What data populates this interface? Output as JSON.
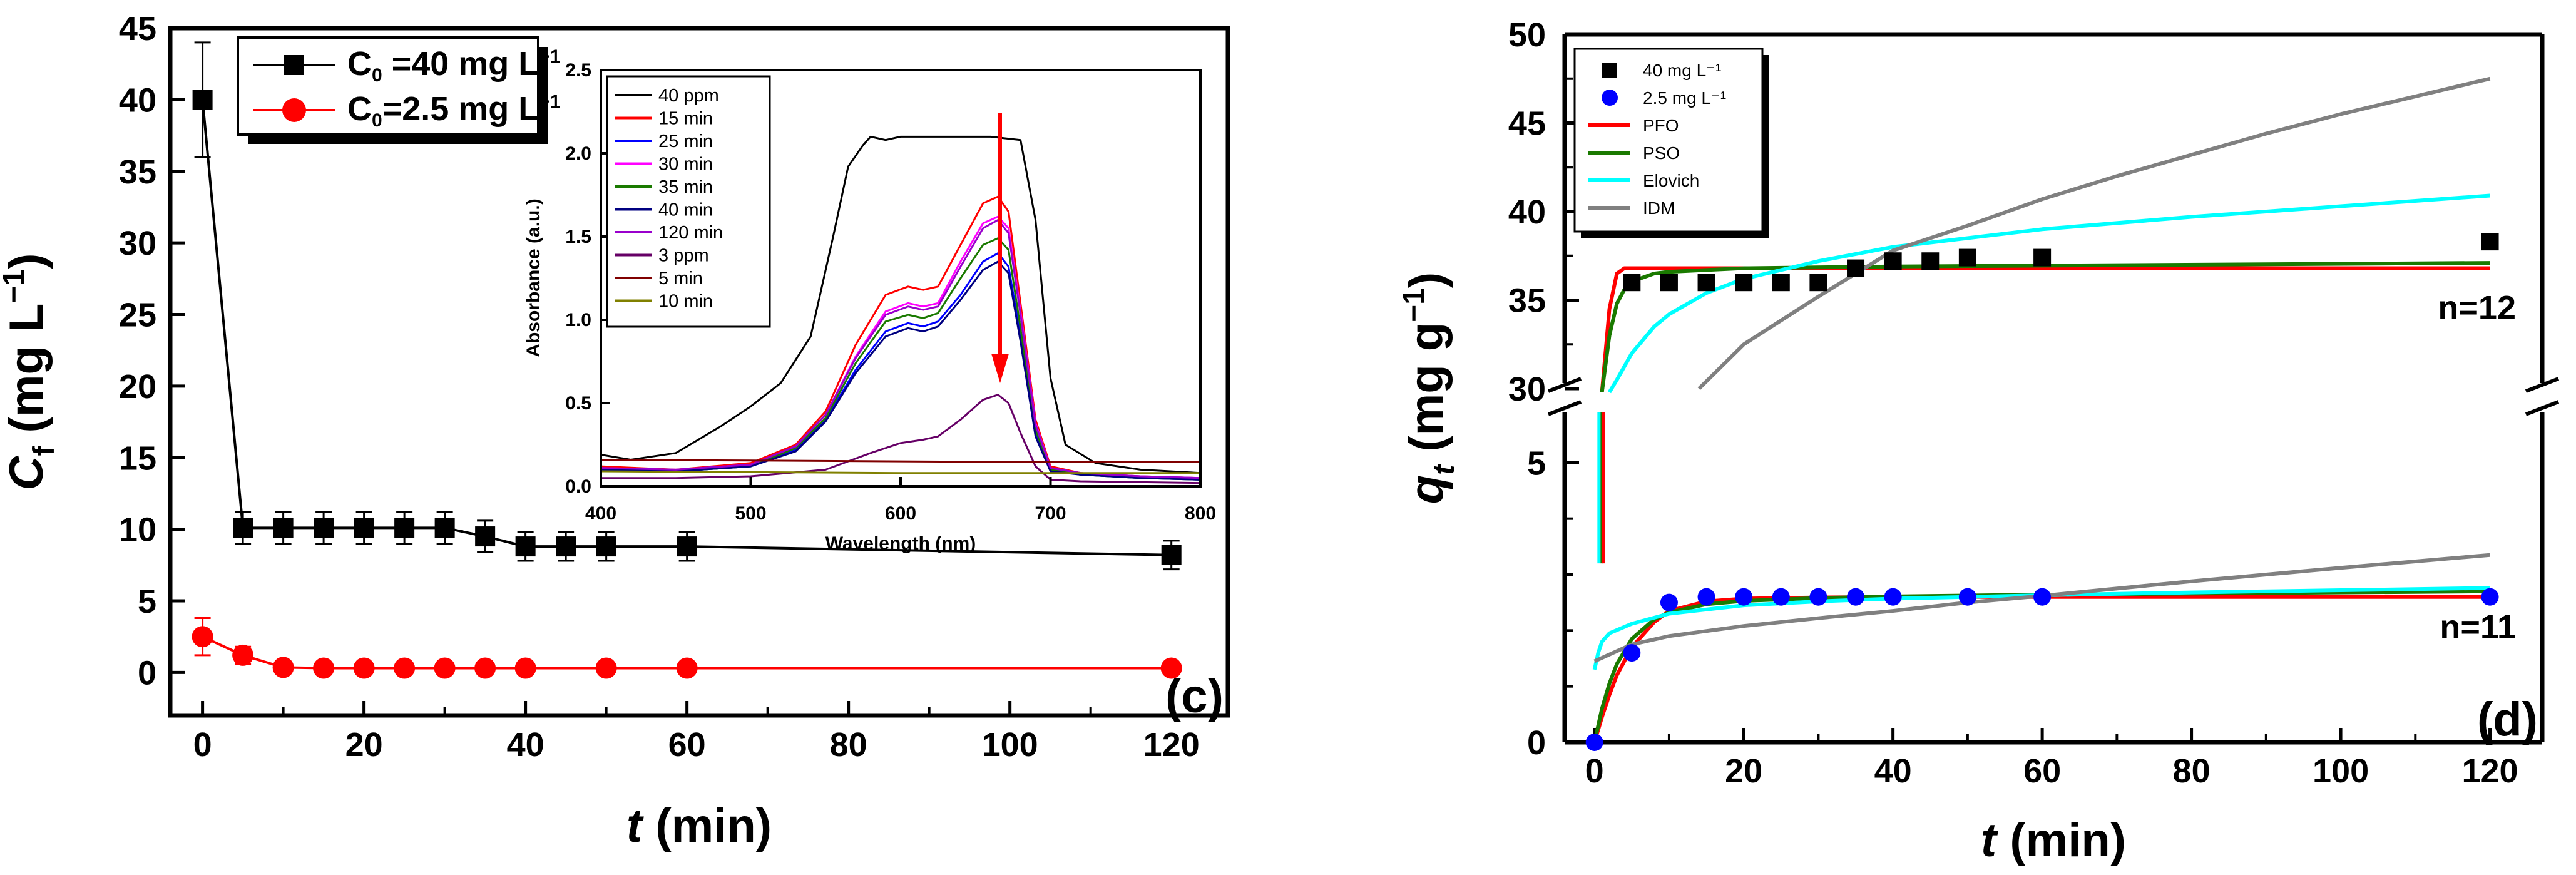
{
  "colors": {
    "black": "#000000",
    "red": "#ff0000",
    "blue": "#0000ff",
    "green": "#1a7a00",
    "cyan": "#00ffff",
    "gray": "#808080"
  },
  "chart_data": [
    {
      "id": "c",
      "type": "line",
      "panel_label": "(c)",
      "xlabel": "t (min)",
      "xlabel_var": "t",
      "xlabel_unit": "(min)",
      "ylabel": "Cf (mg L⁻¹)",
      "xlim": [
        -4,
        127
      ],
      "ylim": [
        -3,
        45
      ],
      "xticks": [
        0,
        20,
        40,
        60,
        80,
        100,
        120
      ],
      "yticks": [
        0,
        5,
        10,
        15,
        20,
        25,
        30,
        35,
        40,
        45
      ],
      "legend": [
        "C₀=40 mg L⁻¹",
        "C₀=2.5 mg L⁻¹"
      ],
      "series": [
        {
          "name": "C₀=40 mg L⁻¹",
          "color": "#000000",
          "marker": "square",
          "x": [
            0,
            5,
            10,
            15,
            20,
            25,
            30,
            35,
            40,
            45,
            50,
            60,
            120
          ],
          "y": [
            40,
            10.1,
            10.1,
            10.1,
            10.1,
            10.1,
            10.1,
            9.5,
            8.8,
            8.8,
            8.8,
            8.8,
            8.2
          ],
          "err": [
            4,
            1.1,
            1.1,
            1.1,
            1.1,
            1.1,
            1.1,
            1.1,
            1.0,
            1.0,
            1.0,
            1.0,
            1.0
          ]
        },
        {
          "name": "C₀=2.5 mg L⁻¹",
          "color": "#ff0000",
          "marker": "circle",
          "x": [
            0,
            5,
            10,
            15,
            20,
            25,
            30,
            35,
            40,
            50,
            60,
            120
          ],
          "y": [
            2.5,
            1.2,
            0.35,
            0.3,
            0.3,
            0.3,
            0.3,
            0.3,
            0.3,
            0.3,
            0.3,
            0.3
          ],
          "err": [
            1.3,
            0.6,
            0.2,
            0.15,
            0.15,
            0.15,
            0.15,
            0.15,
            0.15,
            0.15,
            0.15,
            0.15
          ]
        }
      ]
    },
    {
      "id": "inset",
      "type": "line",
      "xlabel": "Wavelength (nm)",
      "ylabel": "Absorbance (a.u.)",
      "xlim": [
        400,
        800
      ],
      "ylim": [
        0,
        2.5
      ],
      "xticks": [
        400,
        500,
        600,
        700,
        800
      ],
      "yticks": [
        0.0,
        0.5,
        1.0,
        1.5,
        2.0,
        2.5
      ],
      "ytick_labels": [
        "0.0",
        "0.5",
        "1.0",
        "1.5",
        "2.0",
        "2.5"
      ],
      "series": [
        {
          "name": "40 ppm",
          "color": "#000000",
          "x": [
            400,
            420,
            450,
            480,
            500,
            520,
            540,
            555,
            565,
            575,
            580,
            590,
            600,
            620,
            640,
            660,
            680,
            690,
            700,
            710,
            730,
            760,
            800
          ],
          "y": [
            0.19,
            0.16,
            0.2,
            0.36,
            0.48,
            0.62,
            0.9,
            1.5,
            1.92,
            2.05,
            2.1,
            2.08,
            2.1,
            2.1,
            2.1,
            2.1,
            2.08,
            1.6,
            0.65,
            0.25,
            0.14,
            0.1,
            0.08
          ]
        },
        {
          "name": "15 min",
          "color": "#ff0000",
          "x": [
            400,
            450,
            500,
            530,
            550,
            570,
            590,
            605,
            615,
            625,
            640,
            655,
            665,
            672,
            680,
            690,
            700,
            720,
            760,
            800
          ],
          "y": [
            0.12,
            0.1,
            0.14,
            0.25,
            0.45,
            0.85,
            1.15,
            1.2,
            1.18,
            1.2,
            1.45,
            1.7,
            1.74,
            1.65,
            1.1,
            0.4,
            0.12,
            0.08,
            0.06,
            0.05
          ]
        },
        {
          "name": "25 min",
          "color": "#0000ff",
          "x": [
            400,
            450,
            500,
            530,
            550,
            570,
            590,
            605,
            615,
            625,
            640,
            655,
            665,
            672,
            680,
            690,
            700,
            720,
            760,
            800
          ],
          "y": [
            0.1,
            0.09,
            0.12,
            0.22,
            0.4,
            0.7,
            0.93,
            0.98,
            0.96,
            0.99,
            1.15,
            1.35,
            1.4,
            1.32,
            0.9,
            0.32,
            0.1,
            0.07,
            0.05,
            0.04
          ]
        },
        {
          "name": "30 min",
          "color": "#ff00ff",
          "x": [
            400,
            450,
            500,
            530,
            550,
            570,
            590,
            605,
            615,
            625,
            640,
            655,
            665,
            672,
            680,
            690,
            700,
            720,
            760,
            800
          ],
          "y": [
            0.11,
            0.1,
            0.13,
            0.24,
            0.43,
            0.78,
            1.05,
            1.1,
            1.08,
            1.1,
            1.35,
            1.58,
            1.62,
            1.55,
            1.05,
            0.38,
            0.11,
            0.08,
            0.06,
            0.05
          ]
        },
        {
          "name": "35 min",
          "color": "#1a7a00",
          "x": [
            400,
            450,
            500,
            530,
            550,
            570,
            590,
            605,
            615,
            625,
            640,
            655,
            665,
            672,
            680,
            690,
            700,
            720,
            760,
            800
          ],
          "y": [
            0.1,
            0.09,
            0.12,
            0.23,
            0.41,
            0.74,
            0.99,
            1.03,
            1.01,
            1.04,
            1.25,
            1.45,
            1.49,
            1.42,
            0.95,
            0.34,
            0.1,
            0.07,
            0.05,
            0.04
          ]
        },
        {
          "name": "40 min",
          "color": "#000080",
          "x": [
            400,
            450,
            500,
            530,
            550,
            570,
            590,
            605,
            615,
            625,
            640,
            655,
            665,
            672,
            680,
            690,
            700,
            720,
            760,
            800
          ],
          "y": [
            0.1,
            0.09,
            0.12,
            0.21,
            0.39,
            0.68,
            0.9,
            0.95,
            0.93,
            0.96,
            1.12,
            1.3,
            1.35,
            1.28,
            0.87,
            0.3,
            0.09,
            0.07,
            0.05,
            0.04
          ]
        },
        {
          "name": "120 min",
          "color": "#9900cc",
          "x": [
            400,
            450,
            500,
            530,
            550,
            570,
            590,
            605,
            615,
            625,
            640,
            655,
            665,
            672,
            680,
            690,
            700,
            720,
            760,
            800
          ],
          "y": [
            0.11,
            0.1,
            0.13,
            0.24,
            0.43,
            0.77,
            1.03,
            1.08,
            1.06,
            1.08,
            1.32,
            1.55,
            1.6,
            1.52,
            1.03,
            0.37,
            0.11,
            0.08,
            0.06,
            0.05
          ]
        },
        {
          "name": "3 ppm",
          "color": "#660066",
          "x": [
            400,
            450,
            500,
            550,
            580,
            600,
            615,
            625,
            640,
            655,
            665,
            672,
            680,
            690,
            700,
            720,
            800
          ],
          "y": [
            0.05,
            0.05,
            0.06,
            0.1,
            0.2,
            0.26,
            0.28,
            0.3,
            0.4,
            0.52,
            0.55,
            0.5,
            0.32,
            0.12,
            0.04,
            0.03,
            0.02
          ]
        },
        {
          "name": "5 min",
          "color": "#800000",
          "x": [
            400,
            500,
            600,
            700,
            800
          ],
          "y": [
            0.16,
            0.155,
            0.15,
            0.145,
            0.145
          ]
        },
        {
          "name": "10 min",
          "color": "#808000",
          "x": [
            400,
            500,
            600,
            700,
            800
          ],
          "y": [
            0.09,
            0.085,
            0.08,
            0.08,
            0.08
          ]
        }
      ]
    },
    {
      "id": "d",
      "type": "scatter",
      "panel_label": "(d)",
      "xlabel": "t (min)",
      "xlabel_var": "t",
      "xlabel_unit": "(min)",
      "ylabel": "qt (mg g⁻¹)",
      "xlim": [
        -4,
        127
      ],
      "upper": {
        "ylim": [
          30,
          50
        ],
        "yticks": [
          30,
          35,
          40,
          45,
          50
        ],
        "annotation": "n=12"
      },
      "lower": {
        "ylim": [
          0,
          6
        ],
        "yticks": [
          0,
          5
        ],
        "annotation": "n=11"
      },
      "xticks": [
        0,
        20,
        40,
        60,
        80,
        100,
        120
      ],
      "legend": [
        "40 mg L⁻¹",
        "2.5 mg L⁻¹",
        "PFO",
        "PSO",
        "Elovich",
        "IDM"
      ],
      "series": [
        {
          "name": "40 mg L⁻¹",
          "color": "#000000",
          "marker": "square",
          "x": [
            5,
            10,
            15,
            20,
            25,
            30,
            35,
            40,
            45,
            50,
            60,
            120
          ],
          "y": [
            36,
            36,
            36,
            36,
            36,
            36,
            36.8,
            37.2,
            37.2,
            37.4,
            37.4,
            38.3
          ]
        },
        {
          "name": "2.5 mg L⁻¹",
          "color": "#0000ff",
          "marker": "circle",
          "x": [
            0,
            5,
            10,
            15,
            20,
            25,
            30,
            35,
            40,
            50,
            60,
            120
          ],
          "y": [
            0,
            1.6,
            2.5,
            2.6,
            2.6,
            2.6,
            2.6,
            2.6,
            2.6,
            2.6,
            2.6,
            2.6
          ]
        },
        {
          "name": "PFO",
          "color": "#ff0000",
          "x": [
            0,
            1,
            2,
            3,
            4,
            5,
            6,
            8,
            10,
            120
          ],
          "y_upper": [
            null,
            29.5,
            34.5,
            36.5,
            36.8,
            36.8,
            36.8,
            36.8,
            36.8,
            36.8
          ],
          "x_lower": [
            0,
            1,
            2,
            3,
            5,
            8,
            10,
            15,
            20,
            30,
            40,
            60,
            120
          ],
          "y_lower": [
            0,
            0.45,
            0.85,
            1.2,
            1.7,
            2.15,
            2.35,
            2.52,
            2.57,
            2.59,
            2.6,
            2.6,
            2.6
          ]
        },
        {
          "name": "PSO",
          "color": "#1a7a00",
          "x": [
            0,
            1,
            2,
            3,
            4,
            6,
            8,
            10,
            15,
            20,
            40,
            60,
            120
          ],
          "y_upper": [
            null,
            29.5,
            33,
            34.8,
            35.6,
            36.2,
            36.5,
            36.6,
            36.7,
            36.8,
            36.9,
            36.95,
            37.1
          ],
          "x_lower": [
            0,
            1,
            2,
            3,
            5,
            8,
            10,
            15,
            20,
            30,
            40,
            60,
            120
          ],
          "y_lower": [
            0,
            0.6,
            1.05,
            1.4,
            1.85,
            2.2,
            2.32,
            2.47,
            2.53,
            2.58,
            2.61,
            2.64,
            2.7
          ]
        },
        {
          "name": "Elovich",
          "color": "#00ffff",
          "x": [
            2,
            3,
            5,
            8,
            10,
            15,
            20,
            30,
            40,
            60,
            80,
            100,
            120
          ],
          "y_upper": [
            29.5,
            30.5,
            32.0,
            33.5,
            34.2,
            35.4,
            36.2,
            37.2,
            38.0,
            39.0,
            39.7,
            40.3,
            40.9
          ],
          "x_lower": [
            0,
            0.5,
            1,
            2,
            5,
            10,
            20,
            30,
            40,
            60,
            80,
            100,
            120
          ],
          "y_lower": [
            1.3,
            1.6,
            1.8,
            1.95,
            2.12,
            2.3,
            2.45,
            2.52,
            2.57,
            2.63,
            2.68,
            2.72,
            2.76
          ]
        },
        {
          "name": "IDM",
          "color": "#808080",
          "x": [
            14,
            20,
            30,
            40,
            50,
            60,
            70,
            80,
            90,
            100,
            110,
            120
          ],
          "y_upper": [
            30.0,
            32.5,
            35.2,
            37.8,
            39.2,
            40.7,
            42.0,
            43.2,
            44.4,
            45.5,
            46.5,
            47.5
          ],
          "x_lower": [
            0,
            5,
            10,
            20,
            30,
            40,
            50,
            60,
            80,
            100,
            120
          ],
          "y_lower": [
            1.45,
            1.75,
            1.9,
            2.08,
            2.22,
            2.35,
            2.5,
            2.62,
            2.88,
            3.12,
            3.35
          ]
        }
      ]
    }
  ]
}
